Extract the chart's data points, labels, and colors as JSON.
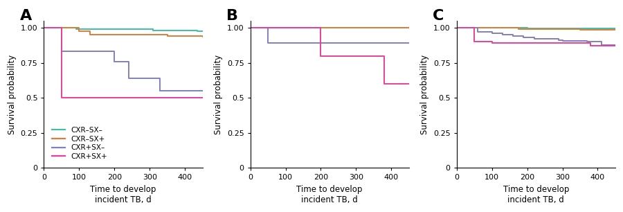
{
  "colors": {
    "cxr_neg_sx_neg": "#3dbfa8",
    "cxr_neg_sx_pos": "#e07b39",
    "cxr_pos_sx_neg": "#8080c0",
    "cxr_pos_sx_pos": "#e8409a"
  },
  "legend_labels": [
    "CXR–SX–",
    "CXR–SX+",
    "CXR+SX–",
    "CXR+SX+"
  ],
  "panel_labels": [
    "A",
    "B",
    "C"
  ],
  "xlabel": "Time to develop\nincident TB, d",
  "ylabel": "Survival probability",
  "xlim": [
    0,
    450
  ],
  "yticks": [
    0,
    0.25,
    0.5,
    0.75,
    1.0
  ],
  "xticks": [
    0,
    100,
    200,
    300,
    400
  ],
  "panels": {
    "A": {
      "cxr_neg_sx_neg": {
        "x": [
          0,
          54,
          91,
          200,
          310,
          350,
          435,
          450
        ],
        "y": [
          1.0,
          1.0,
          0.99,
          0.99,
          0.98,
          0.98,
          0.975,
          0.975
        ]
      },
      "cxr_neg_sx_pos": {
        "x": [
          0,
          55,
          100,
          130,
          350,
          450
        ],
        "y": [
          1.0,
          1.0,
          0.975,
          0.95,
          0.94,
          0.935
        ]
      },
      "cxr_pos_sx_neg": {
        "x": [
          0,
          47,
          50,
          65,
          130,
          200,
          240,
          290,
          330,
          370,
          450
        ],
        "y": [
          1.0,
          1.0,
          0.83,
          0.83,
          0.83,
          0.76,
          0.64,
          0.64,
          0.55,
          0.55,
          0.55
        ]
      },
      "cxr_pos_sx_pos": {
        "x": [
          0,
          50,
          130,
          450
        ],
        "y": [
          1.0,
          0.5,
          0.5,
          0.5
        ]
      }
    },
    "B": {
      "cxr_neg_sx_neg": {
        "x": [
          0,
          450
        ],
        "y": [
          1.0,
          1.0
        ]
      },
      "cxr_neg_sx_pos": {
        "x": [
          0,
          450
        ],
        "y": [
          1.0,
          1.0
        ]
      },
      "cxr_pos_sx_neg": {
        "x": [
          0,
          45,
          50,
          450
        ],
        "y": [
          1.0,
          1.0,
          0.89,
          0.89
        ]
      },
      "cxr_pos_sx_pos": {
        "x": [
          0,
          195,
          200,
          370,
          380,
          450
        ],
        "y": [
          1.0,
          1.0,
          0.8,
          0.8,
          0.6,
          0.6
        ]
      }
    },
    "C": {
      "cxr_neg_sx_neg": {
        "x": [
          0,
          175,
          200,
          450
        ],
        "y": [
          1.0,
          1.0,
          0.995,
          0.99
        ]
      },
      "cxr_neg_sx_pos": {
        "x": [
          0,
          175,
          350,
          450
        ],
        "y": [
          1.0,
          0.99,
          0.985,
          0.985
        ]
      },
      "cxr_pos_sx_neg": {
        "x": [
          0,
          50,
          60,
          100,
          130,
          160,
          190,
          220,
          290,
          300,
          370,
          410,
          450
        ],
        "y": [
          1.0,
          1.0,
          0.97,
          0.96,
          0.95,
          0.94,
          0.93,
          0.92,
          0.91,
          0.905,
          0.9,
          0.875,
          0.87
        ]
      },
      "cxr_pos_sx_pos": {
        "x": [
          0,
          45,
          50,
          100,
          190,
          370,
          380,
          450
        ],
        "y": [
          1.0,
          1.0,
          0.9,
          0.89,
          0.89,
          0.89,
          0.87,
          0.87
        ]
      }
    }
  },
  "figsize": [
    9.0,
    3.06
  ],
  "dpi": 100,
  "linewidth": 1.4,
  "tick_fontsize": 8,
  "label_fontsize": 8.5,
  "panel_label_fontsize": 16,
  "legend_fontsize": 7.5
}
